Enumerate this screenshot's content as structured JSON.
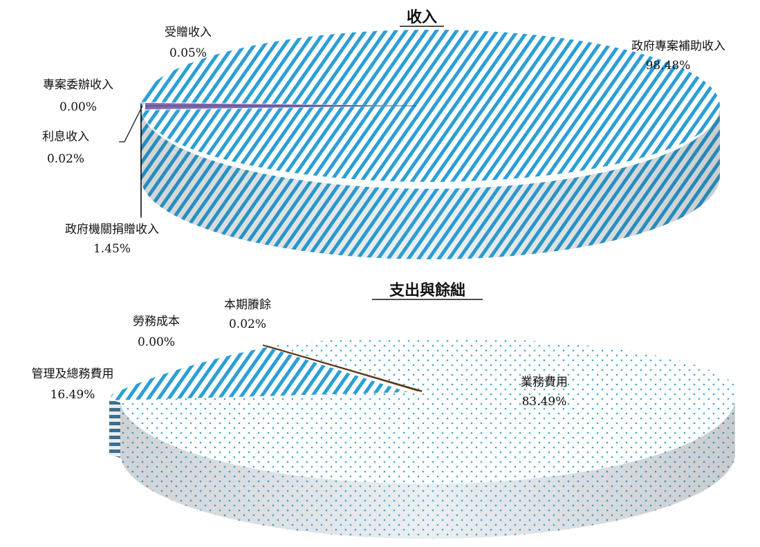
{
  "chart_data": [
    {
      "type": "pie",
      "title": "收入",
      "slices": [
        {
          "label": "政府專案補助收入",
          "value": 98.48,
          "display": "98.48%"
        },
        {
          "label": "政府機關捐贈收入",
          "value": 1.45,
          "display": "1.45%"
        },
        {
          "label": "利息收入",
          "value": 0.02,
          "display": "0.02%"
        },
        {
          "label": "專案委辦收入",
          "value": 0.0,
          "display": "0.00%"
        },
        {
          "label": "受贈收入",
          "value": 0.05,
          "display": "0.05%"
        }
      ]
    },
    {
      "type": "pie",
      "title": "支出與餘絀",
      "slices": [
        {
          "label": "業務費用",
          "value": 83.49,
          "display": "83.49%"
        },
        {
          "label": "管理及總務費用",
          "value": 16.49,
          "display": "16.49%"
        },
        {
          "label": "勞務成本",
          "value": 0.0,
          "display": "0.00%"
        },
        {
          "label": "本期賸餘",
          "value": 0.02,
          "display": "0.02%"
        }
      ]
    }
  ],
  "colors": {
    "stripe_blue": "#2a9fd6",
    "dot_blue": "#3aa6d8",
    "purple": "#8866aa",
    "brown": "#7a4a2a",
    "side_gray": "#e6e9ec",
    "dark_stripe": "#3b6e8a"
  }
}
